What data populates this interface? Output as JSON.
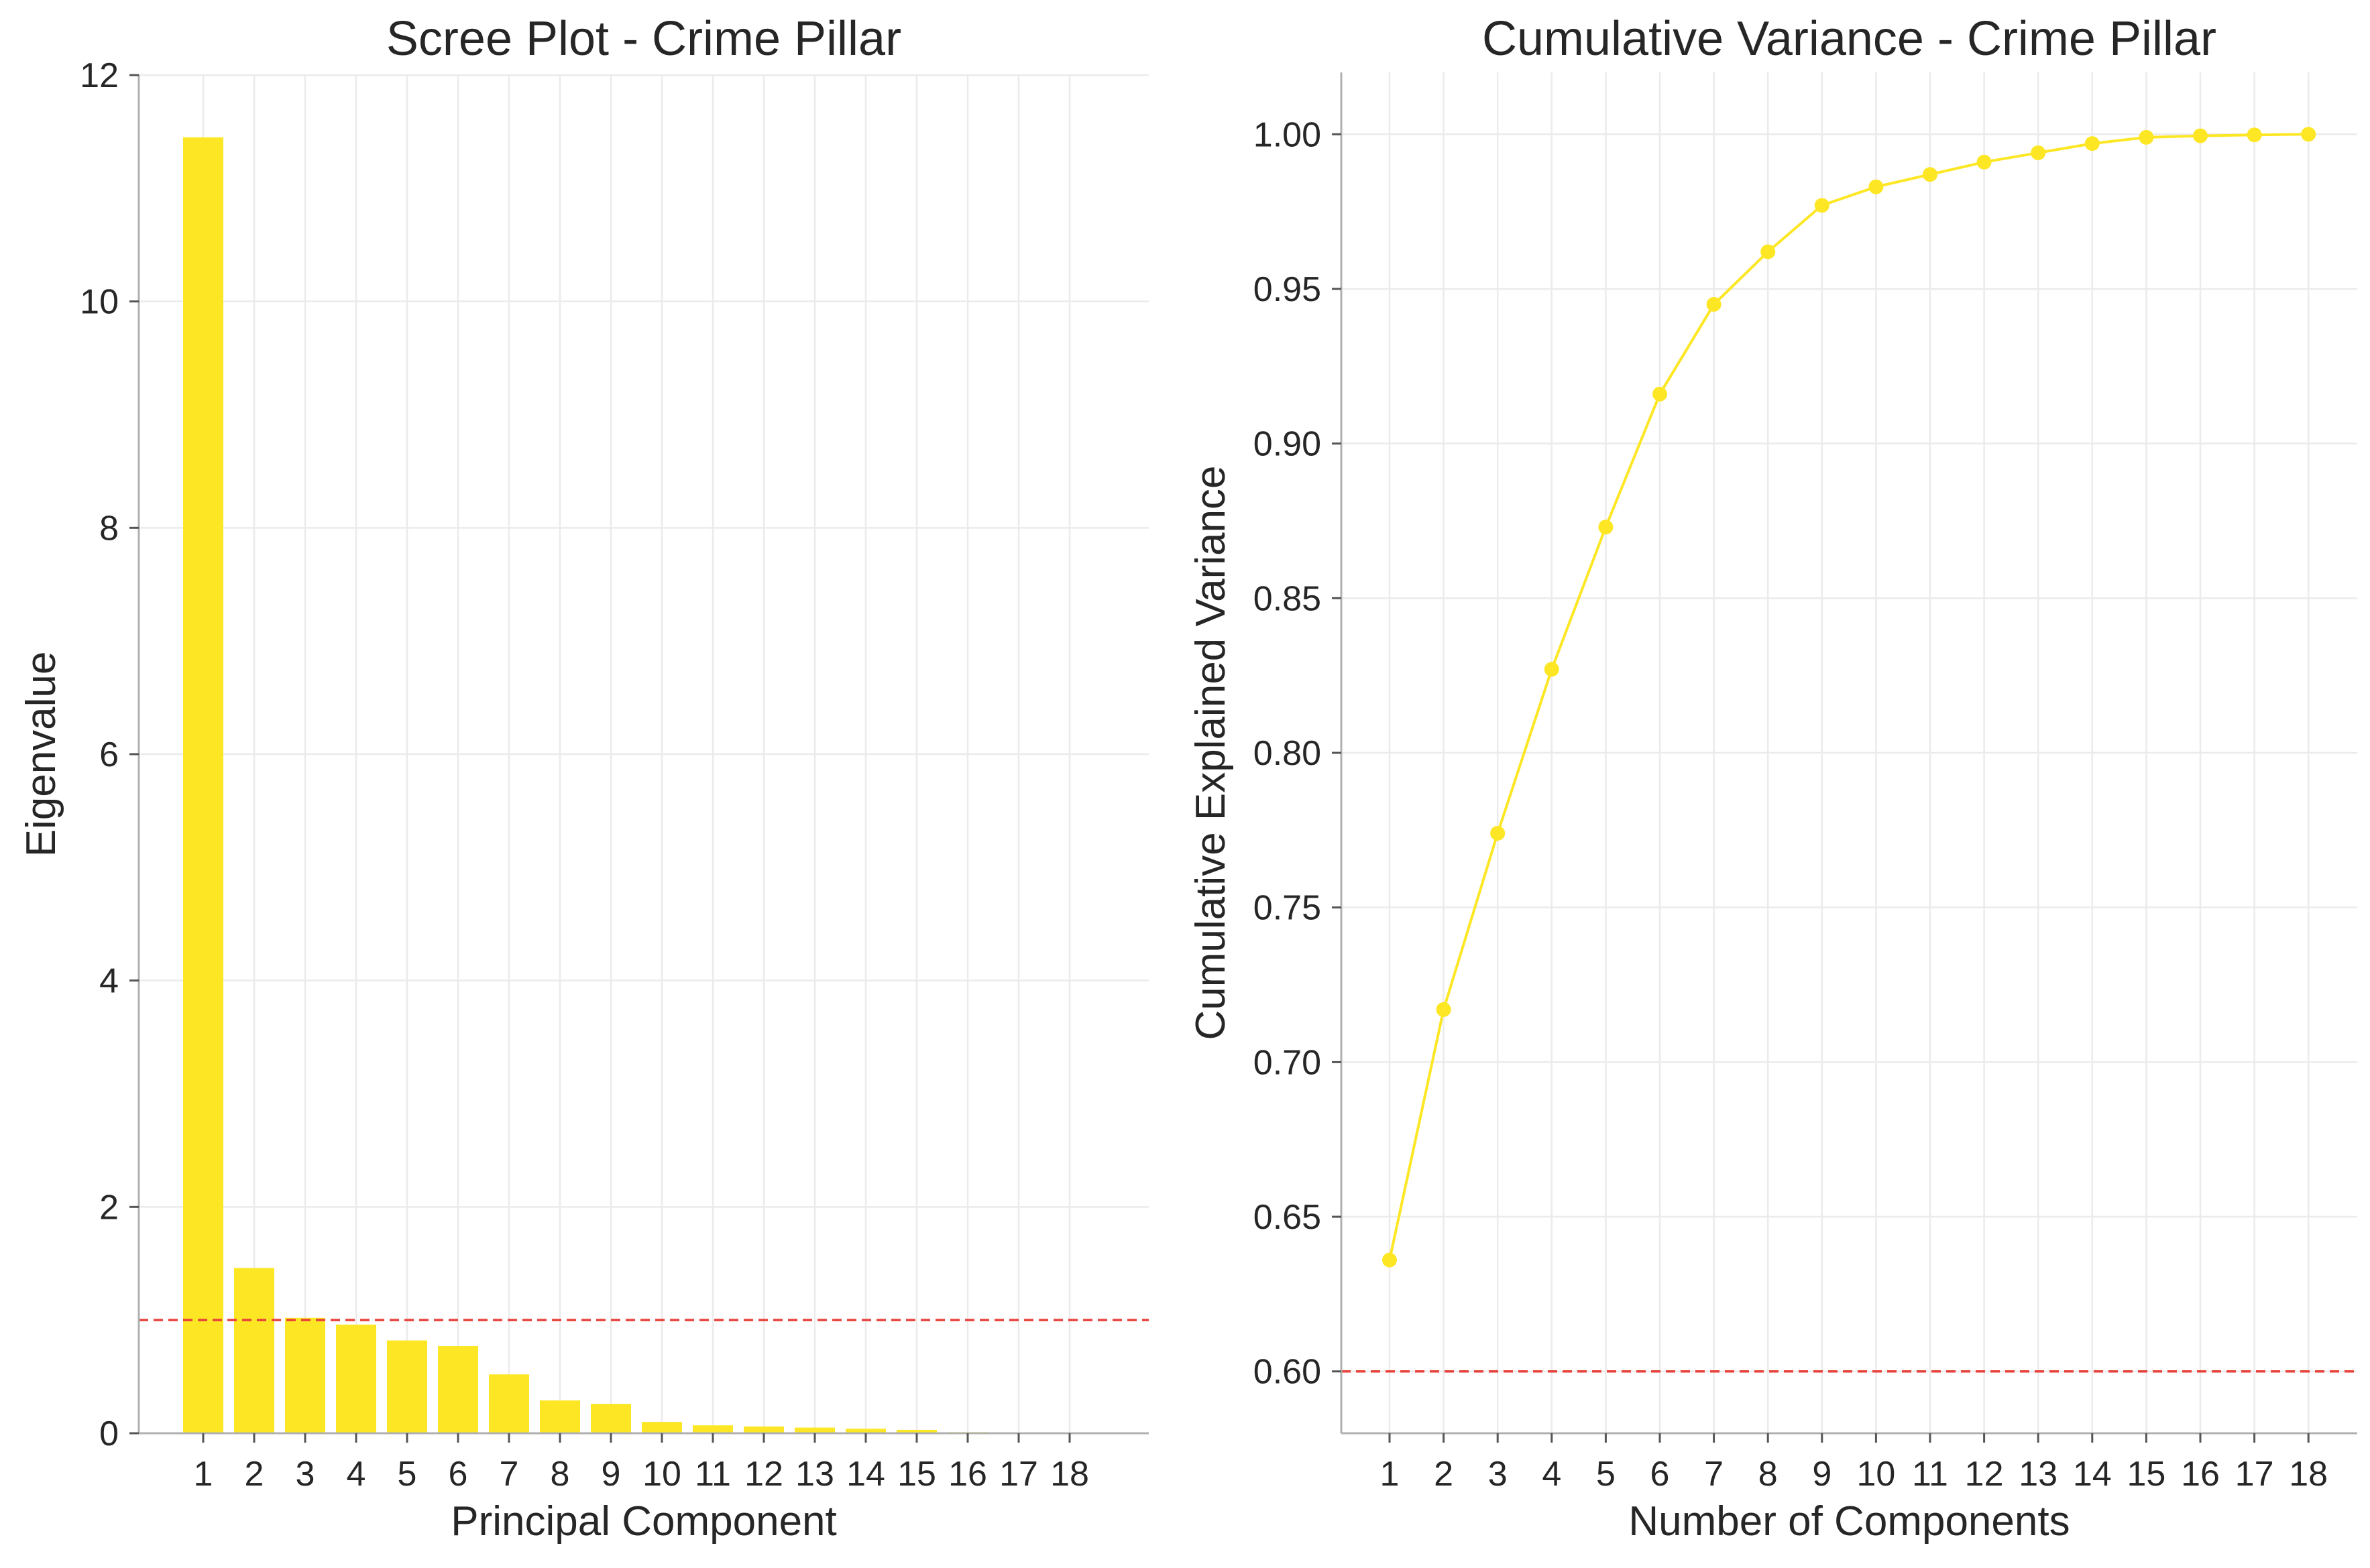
{
  "chart_data": [
    {
      "type": "bar",
      "title": "Scree Plot - Crime Pillar",
      "xlabel": "Principal Component",
      "ylabel": "Eigenvalue",
      "categories": [
        "1",
        "2",
        "3",
        "4",
        "5",
        "6",
        "7",
        "8",
        "9",
        "10",
        "11",
        "12",
        "13",
        "14",
        "15",
        "16",
        "17",
        "18"
      ],
      "values": [
        11.45,
        1.46,
        1.02,
        0.96,
        0.82,
        0.77,
        0.52,
        0.29,
        0.26,
        0.1,
        0.07,
        0.06,
        0.05,
        0.04,
        0.03,
        0.01,
        0.005,
        0.002
      ],
      "ylim": [
        0,
        12
      ],
      "yticks": [
        0,
        2,
        4,
        6,
        8,
        10,
        12
      ],
      "reference_line": {
        "y": 1.0,
        "color": "#e8423b",
        "style": "dashed"
      },
      "bar_color": "#fde725",
      "grid": true
    },
    {
      "type": "line",
      "title": "Cumulative Variance - Crime Pillar",
      "xlabel": "Number of Components",
      "ylabel": "Cumulative Explained Variance",
      "x": [
        1,
        2,
        3,
        4,
        5,
        6,
        7,
        8,
        9,
        10,
        11,
        12,
        13,
        14,
        15,
        16,
        17,
        18
      ],
      "values": [
        0.636,
        0.717,
        0.774,
        0.827,
        0.873,
        0.916,
        0.945,
        0.962,
        0.977,
        0.983,
        0.987,
        0.991,
        0.994,
        0.997,
        0.999,
        0.9995,
        0.9998,
        1.0
      ],
      "ylim": [
        0.58,
        1.02
      ],
      "yticks": [
        "0.60",
        "0.65",
        "0.70",
        "0.75",
        "0.80",
        "0.85",
        "0.90",
        "0.95",
        "1.00"
      ],
      "reference_line": {
        "y": 0.6,
        "color": "#e8423b",
        "style": "dashed"
      },
      "line_color": "#fde725",
      "marker": "circle",
      "grid": true
    }
  ]
}
